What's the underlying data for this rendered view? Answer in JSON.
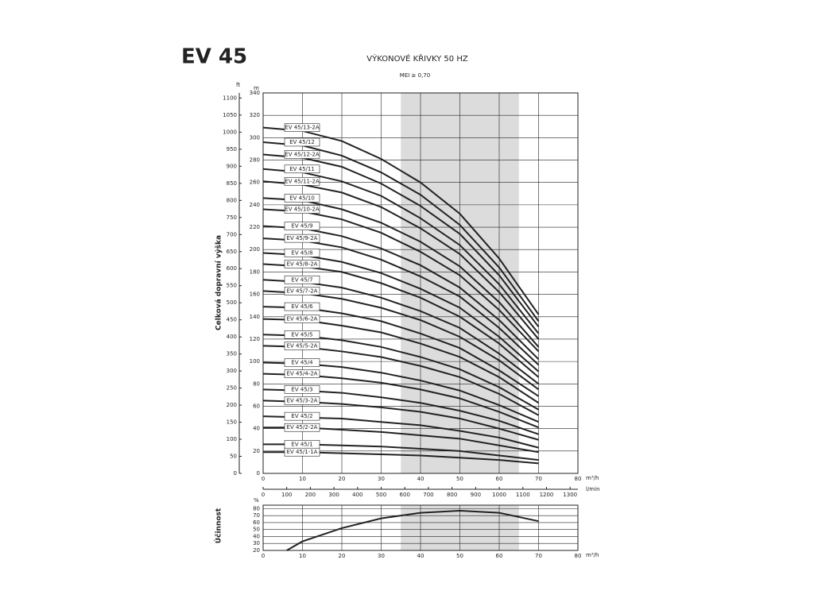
{
  "chart_data": [
    {
      "type": "line",
      "title": "EV 45",
      "subtitle": "VÝKONOVÉ KŘIVKY 50 HZ",
      "annotation": "MEI ≥ 0,70",
      "ylabel": "Celková dopravní výška",
      "yunit": "m",
      "y2unit": "ft",
      "xunit": "m³/h",
      "x2unit": "l/min",
      "x": [
        0,
        10,
        20,
        30,
        40,
        50,
        60,
        70
      ],
      "xlim": [
        0,
        80
      ],
      "xticks": [
        0,
        10,
        20,
        30,
        40,
        50,
        60,
        70,
        80
      ],
      "x2lim": [
        0,
        1333
      ],
      "x2ticks": [
        0,
        100,
        200,
        300,
        400,
        500,
        600,
        700,
        800,
        900,
        1000,
        1100,
        1200,
        1300
      ],
      "ylim": [
        0,
        340
      ],
      "yticks": [
        0,
        20,
        40,
        60,
        80,
        100,
        120,
        140,
        160,
        180,
        200,
        220,
        240,
        260,
        280,
        300,
        320,
        340
      ],
      "y2lim": [
        0,
        1115
      ],
      "y2ticks": [
        0,
        50,
        100,
        150,
        200,
        250,
        300,
        350,
        400,
        450,
        500,
        550,
        600,
        650,
        700,
        750,
        800,
        850,
        900,
        950,
        1000,
        1050,
        1100
      ],
      "highlight": [
        35,
        65
      ],
      "grid": true,
      "series": [
        {
          "name": "EV 45/13-2A",
          "color": "#222222",
          "values": [
            309,
            306,
            297,
            281,
            260,
            232,
            192,
            142
          ]
        },
        {
          "name": "EV 45/12",
          "color": "#222222",
          "values": [
            296,
            293,
            284,
            269,
            249,
            222,
            184,
            136
          ]
        },
        {
          "name": "EV 45/12-2A",
          "color": "#222222",
          "values": [
            285,
            282,
            274,
            259,
            239,
            214,
            177,
            131
          ]
        },
        {
          "name": "EV 45/11",
          "color": "#222222",
          "values": [
            272,
            269,
            261,
            248,
            228,
            204,
            169,
            125
          ]
        },
        {
          "name": "EV 45/11-2A",
          "color": "#222222",
          "values": [
            261,
            258,
            251,
            238,
            219,
            196,
            162,
            120
          ]
        },
        {
          "name": "EV 45/10",
          "color": "#222222",
          "values": [
            246,
            244,
            236,
            224,
            207,
            185,
            153,
            113
          ]
        },
        {
          "name": "EV 45/10-2A",
          "color": "#222222",
          "values": [
            236,
            234,
            227,
            215,
            198,
            177,
            146,
            109
          ]
        },
        {
          "name": "EV 45/9",
          "color": "#222222",
          "values": [
            221,
            219,
            212,
            201,
            186,
            166,
            137,
            102
          ]
        },
        {
          "name": "EV 45/9-2A",
          "color": "#222222",
          "values": [
            210,
            208,
            202,
            191,
            176,
            158,
            130,
            97
          ]
        },
        {
          "name": "EV 45/8",
          "color": "#222222",
          "values": [
            197,
            195,
            189,
            179,
            165,
            148,
            122,
            91
          ]
        },
        {
          "name": "EV 45/8-2A",
          "color": "#222222",
          "values": [
            187,
            185,
            180,
            170,
            157,
            140,
            116,
            86
          ]
        },
        {
          "name": "EV 45/7",
          "color": "#222222",
          "values": [
            173,
            171,
            166,
            157,
            145,
            130,
            107,
            80
          ]
        },
        {
          "name": "EV 45/7-2A",
          "color": "#222222",
          "values": [
            163,
            161,
            156,
            148,
            137,
            122,
            101,
            75
          ]
        },
        {
          "name": "EV 45/6",
          "color": "#222222",
          "values": [
            149,
            148,
            143,
            136,
            125,
            112,
            92,
            69
          ]
        },
        {
          "name": "EV 45/6-2A",
          "color": "#222222",
          "values": [
            138,
            137,
            132,
            126,
            116,
            104,
            86,
            63
          ]
        },
        {
          "name": "EV 45/5",
          "color": "#222222",
          "values": [
            124,
            123,
            119,
            113,
            104,
            93,
            77,
            57
          ]
        },
        {
          "name": "EV 45/5-2A",
          "color": "#222222",
          "values": [
            114,
            113,
            109,
            104,
            96,
            86,
            71,
            52
          ]
        },
        {
          "name": "EV 45/4",
          "color": "#222222",
          "values": [
            99,
            98,
            95,
            90,
            83,
            74,
            61,
            46
          ]
        },
        {
          "name": "EV 45/4-2A",
          "color": "#222222",
          "values": [
            89,
            88,
            85,
            81,
            75,
            67,
            55,
            41
          ]
        },
        {
          "name": "EV 45/3",
          "color": "#222222",
          "values": [
            75,
            74,
            72,
            68,
            63,
            56,
            47,
            35
          ]
        },
        {
          "name": "EV 45/3-2A",
          "color": "#222222",
          "values": [
            65,
            64,
            62,
            59,
            55,
            49,
            40,
            30
          ]
        },
        {
          "name": "EV 45/2",
          "color": "#222222",
          "values": [
            51,
            50,
            49,
            46,
            43,
            38,
            32,
            23
          ]
        },
        {
          "name": "EV 45/2-2A",
          "color": "#222222",
          "values": [
            41,
            41,
            39,
            37,
            34,
            31,
            25,
            19
          ]
        },
        {
          "name": "EV 45/1",
          "color": "#222222",
          "values": [
            26,
            26,
            25,
            24,
            22,
            20,
            16,
            12
          ]
        },
        {
          "name": "EV 45/1-1A",
          "color": "#222222",
          "values": [
            19,
            19,
            18,
            17,
            16,
            14,
            12,
            9
          ]
        }
      ]
    },
    {
      "type": "line",
      "ylabel": "Účinnost",
      "yunit": "%",
      "xunit": "m³/h",
      "x": [
        6,
        10,
        20,
        30,
        40,
        50,
        60,
        70
      ],
      "xlim": [
        0,
        80
      ],
      "xticks": [
        0,
        10,
        20,
        30,
        40,
        50,
        60,
        70,
        80
      ],
      "ylim": [
        20,
        85
      ],
      "yticks": [
        20,
        30,
        40,
        50,
        60,
        70,
        80
      ],
      "highlight": [
        35,
        65
      ],
      "grid": true,
      "series": [
        {
          "color": "#222222",
          "values": [
            20,
            33,
            52,
            66,
            74,
            77,
            74,
            62
          ]
        }
      ]
    }
  ]
}
